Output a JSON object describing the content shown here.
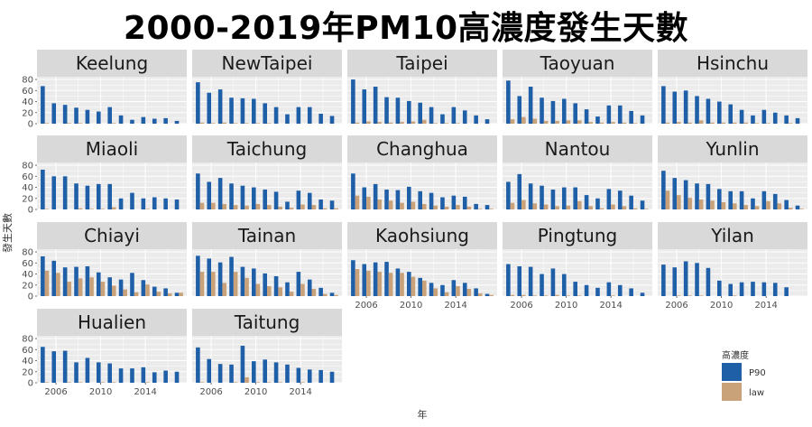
{
  "title": "2000-2019年PM10高濃度發生天數",
  "chart_data": {
    "type": "bar",
    "title": "2000-2019年PM10高濃度發生天數",
    "xlabel": "年",
    "ylabel": "發生天數",
    "x_ticks": [
      2006,
      2010,
      2014
    ],
    "y_ticks": [
      0,
      20,
      40,
      60,
      80
    ],
    "ylim": [
      0,
      85
    ],
    "xlim": [
      2004.3,
      2017.7
    ],
    "years": [
      2005,
      2006,
      2007,
      2008,
      2009,
      2010,
      2011,
      2012,
      2013,
      2014,
      2015,
      2016,
      2017
    ],
    "legend": {
      "title": "高濃度",
      "position": "bottom-right",
      "entries": [
        "P90",
        "law"
      ]
    },
    "colors": {
      "P90": "#1f5fa8",
      "law": "#c9a27a",
      "panel_bg": "#ebebeb",
      "strip_bg": "#d9d9d9",
      "grid": "#ffffff"
    },
    "grid": true,
    "panels": [
      {
        "name": "Keelung",
        "P90": [
          68,
          37,
          34,
          29,
          25,
          22,
          30,
          15,
          7,
          12,
          9,
          10,
          5
        ],
        "law": [
          1,
          0,
          1,
          1,
          0,
          0,
          1,
          0,
          0,
          0,
          0,
          0,
          0
        ]
      },
      {
        "name": "NewTaipei",
        "P90": [
          75,
          56,
          62,
          47,
          46,
          45,
          37,
          30,
          17,
          30,
          30,
          18,
          14
        ],
        "law": [
          2,
          1,
          2,
          1,
          1,
          1,
          1,
          0,
          0,
          0,
          0,
          0,
          0
        ]
      },
      {
        "name": "Taipei",
        "P90": [
          80,
          62,
          67,
          48,
          47,
          41,
          38,
          30,
          17,
          30,
          24,
          15,
          8
        ],
        "law": [
          2,
          4,
          3,
          2,
          3,
          4,
          7,
          1,
          1,
          1,
          0,
          0,
          0
        ]
      },
      {
        "name": "Taoyuan",
        "P90": [
          78,
          50,
          67,
          47,
          41,
          45,
          37,
          26,
          13,
          33,
          33,
          23,
          15
        ],
        "law": [
          8,
          12,
          9,
          5,
          5,
          6,
          6,
          3,
          2,
          3,
          2,
          1,
          0
        ]
      },
      {
        "name": "Hsinchu",
        "P90": [
          68,
          58,
          60,
          50,
          45,
          40,
          35,
          25,
          15,
          25,
          20,
          15,
          10
        ],
        "law": [
          2,
          3,
          2,
          6,
          2,
          2,
          2,
          2,
          1,
          1,
          0,
          1,
          0
        ]
      },
      {
        "name": "Miaoli",
        "P90": [
          72,
          60,
          60,
          47,
          43,
          46,
          46,
          20,
          30,
          20,
          22,
          20,
          18
        ],
        "law": [
          1,
          0,
          0,
          2,
          1,
          1,
          4,
          0,
          0,
          1,
          0,
          0,
          0
        ]
      },
      {
        "name": "Taichung",
        "P90": [
          65,
          50,
          57,
          47,
          43,
          40,
          36,
          32,
          14,
          34,
          30,
          18,
          16
        ],
        "law": [
          12,
          12,
          10,
          8,
          7,
          10,
          8,
          5,
          3,
          9,
          8,
          2,
          2
        ]
      },
      {
        "name": "Changhua",
        "P90": [
          65,
          40,
          46,
          36,
          35,
          41,
          33,
          30,
          22,
          25,
          23,
          10,
          8
        ],
        "law": [
          25,
          23,
          18,
          16,
          12,
          14,
          10,
          7,
          5,
          8,
          5,
          1,
          1
        ]
      },
      {
        "name": "Nantou",
        "P90": [
          50,
          64,
          47,
          43,
          36,
          40,
          40,
          26,
          20,
          37,
          34,
          25,
          16
        ],
        "law": [
          12,
          17,
          11,
          9,
          6,
          7,
          15,
          6,
          2,
          9,
          6,
          2,
          1
        ]
      },
      {
        "name": "Yunlin",
        "P90": [
          70,
          57,
          53,
          47,
          46,
          37,
          33,
          33,
          20,
          33,
          28,
          17,
          7
        ],
        "law": [
          34,
          26,
          21,
          18,
          16,
          13,
          11,
          8,
          6,
          15,
          11,
          3,
          1
        ]
      },
      {
        "name": "Chiayi",
        "P90": [
          72,
          64,
          52,
          53,
          54,
          43,
          34,
          30,
          42,
          29,
          17,
          14,
          6
        ],
        "law": [
          46,
          42,
          26,
          32,
          34,
          26,
          19,
          12,
          7,
          21,
          8,
          5,
          6
        ]
      },
      {
        "name": "Tainan",
        "P90": [
          73,
          68,
          61,
          71,
          53,
          50,
          41,
          36,
          25,
          44,
          30,
          15,
          6
        ],
        "law": [
          44,
          44,
          24,
          44,
          33,
          22,
          18,
          16,
          8,
          22,
          13,
          4,
          2
        ]
      },
      {
        "name": "Kaohsiung",
        "P90": [
          65,
          58,
          61,
          62,
          50,
          44,
          33,
          24,
          20,
          29,
          24,
          14,
          4
        ],
        "law": [
          49,
          46,
          44,
          42,
          42,
          35,
          28,
          14,
          7,
          18,
          13,
          5,
          2
        ]
      },
      {
        "name": "Pingtung",
        "P90": [
          58,
          54,
          53,
          40,
          50,
          40,
          26,
          20,
          15,
          25,
          20,
          14,
          6
        ],
        "law": [
          2,
          2,
          1,
          1,
          2,
          1,
          1,
          0,
          0,
          1,
          0,
          0,
          0
        ]
      },
      {
        "name": "Yilan",
        "P90": [
          57,
          52,
          63,
          60,
          51,
          28,
          22,
          25,
          26,
          25,
          24,
          16,
          0
        ],
        "law": [
          0,
          1,
          1,
          1,
          0,
          0,
          1,
          0,
          0,
          0,
          0,
          0,
          0
        ]
      },
      {
        "name": "Hualien",
        "P90": [
          65,
          57,
          58,
          37,
          45,
          37,
          35,
          26,
          26,
          28,
          19,
          22,
          20
        ],
        "law": [
          1,
          0,
          1,
          1,
          0,
          1,
          1,
          0,
          0,
          1,
          0,
          0,
          0
        ]
      },
      {
        "name": "Taitung",
        "P90": [
          64,
          43,
          34,
          33,
          67,
          39,
          42,
          37,
          33,
          27,
          24,
          23,
          20
        ],
        "law": [
          1,
          0,
          0,
          1,
          10,
          1,
          1,
          1,
          0,
          1,
          0,
          0,
          0
        ]
      }
    ]
  }
}
